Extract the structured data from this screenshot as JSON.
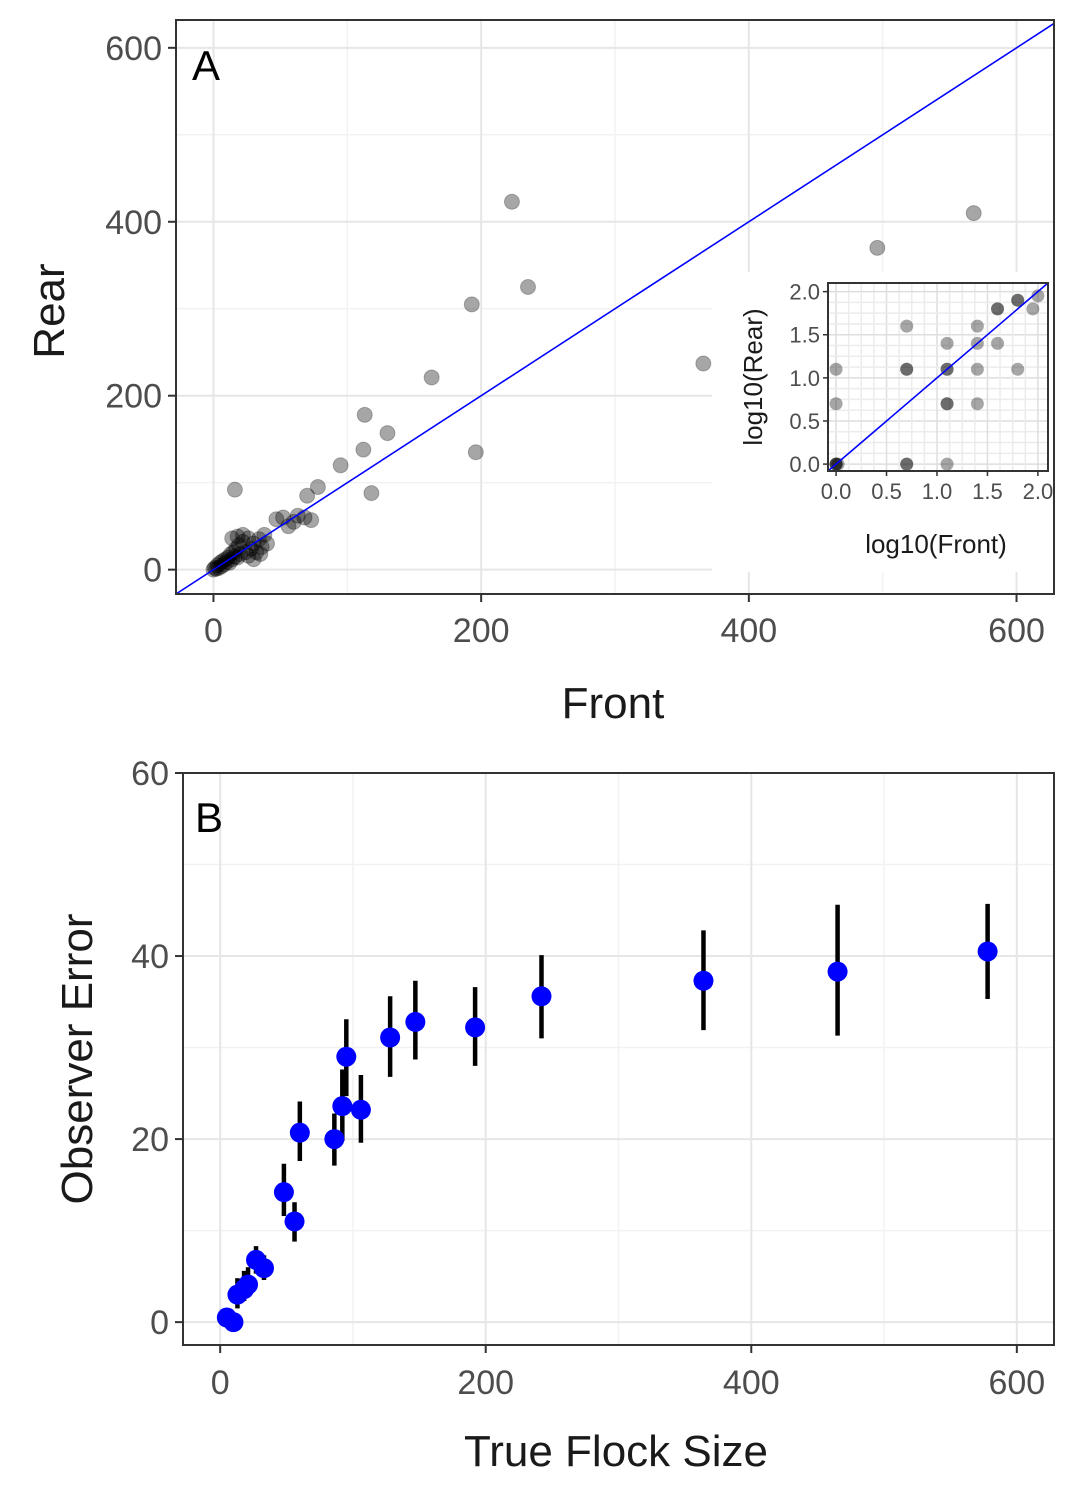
{
  "chart_data": [
    {
      "type": "scatter",
      "panel_label": "A",
      "xlabel": "Front",
      "ylabel": "Rear",
      "xlim": [
        -28,
        628
      ],
      "ylim": [
        -28,
        632
      ],
      "xticks": [
        0,
        200,
        400,
        600
      ],
      "yticks": [
        0,
        200,
        400,
        600
      ],
      "grid": true,
      "reference_line": {
        "slope": 1,
        "intercept": 0,
        "color": "#0000ff"
      },
      "point_color": "#000000",
      "point_opacity": 0.35,
      "points": [
        [
          0,
          0
        ],
        [
          1,
          2
        ],
        [
          2,
          1
        ],
        [
          3,
          5
        ],
        [
          4,
          2
        ],
        [
          5,
          8
        ],
        [
          6,
          4
        ],
        [
          7,
          10
        ],
        [
          8,
          6
        ],
        [
          9,
          12
        ],
        [
          10,
          9
        ],
        [
          11,
          14
        ],
        [
          12,
          8
        ],
        [
          13,
          18
        ],
        [
          14,
          12
        ],
        [
          15,
          20
        ],
        [
          16,
          15
        ],
        [
          17,
          24
        ],
        [
          18,
          14
        ],
        [
          19,
          28
        ],
        [
          20,
          18
        ],
        [
          22,
          32
        ],
        [
          24,
          20
        ],
        [
          26,
          36
        ],
        [
          28,
          24
        ],
        [
          30,
          30
        ],
        [
          32,
          20
        ],
        [
          34,
          35
        ],
        [
          36,
          26
        ],
        [
          38,
          40
        ],
        [
          40,
          30
        ],
        [
          14,
          36
        ],
        [
          18,
          38
        ],
        [
          22,
          40
        ],
        [
          26,
          16
        ],
        [
          30,
          12
        ],
        [
          35,
          18
        ],
        [
          16,
          92
        ],
        [
          47,
          58
        ],
        [
          52,
          60
        ],
        [
          56,
          50
        ],
        [
          60,
          55
        ],
        [
          63,
          62
        ],
        [
          68,
          60
        ],
        [
          70,
          85
        ],
        [
          73,
          57
        ],
        [
          78,
          95
        ],
        [
          95,
          120
        ],
        [
          113,
          178
        ],
        [
          112,
          138
        ],
        [
          118,
          88
        ],
        [
          130,
          157
        ],
        [
          163,
          221
        ],
        [
          193,
          305
        ],
        [
          196,
          135
        ],
        [
          223,
          423
        ],
        [
          235,
          325
        ],
        [
          366,
          237
        ],
        [
          496,
          370
        ],
        [
          568,
          410
        ]
      ],
      "inset": {
        "type": "scatter",
        "xlabel": "log10(Front)",
        "ylabel": "log10(Rear)",
        "xlim": [
          -0.08,
          2.1
        ],
        "ylim": [
          -0.08,
          2.1
        ],
        "xticks": [
          "0.0",
          "0.5",
          "1.0",
          "1.5",
          "2.0"
        ],
        "yticks": [
          "0.0",
          "0.5",
          "1.0",
          "1.5",
          "2.0"
        ],
        "reference_line": {
          "slope": 1,
          "intercept": 0,
          "color": "#0000ff"
        },
        "points": [
          [
            0,
            0
          ],
          [
            0,
            0
          ],
          [
            0,
            0
          ],
          [
            0.02,
            0.0
          ],
          [
            0.0,
            0.7
          ],
          [
            0.0,
            1.1
          ],
          [
            0.7,
            0.0
          ],
          [
            0.7,
            0.0
          ],
          [
            0.7,
            1.1
          ],
          [
            0.7,
            1.1
          ],
          [
            0.7,
            1.6
          ],
          [
            1.1,
            0.0
          ],
          [
            1.1,
            0.7
          ],
          [
            1.1,
            0.7
          ],
          [
            1.1,
            1.1
          ],
          [
            1.1,
            1.1
          ],
          [
            1.1,
            1.4
          ],
          [
            1.4,
            0.7
          ],
          [
            1.4,
            1.1
          ],
          [
            1.4,
            1.4
          ],
          [
            1.4,
            1.6
          ],
          [
            1.6,
            1.4
          ],
          [
            1.6,
            1.8
          ],
          [
            1.6,
            1.8
          ],
          [
            1.8,
            1.1
          ],
          [
            1.8,
            1.9
          ],
          [
            1.8,
            1.9
          ],
          [
            1.95,
            1.8
          ],
          [
            2.0,
            1.95
          ]
        ]
      }
    },
    {
      "type": "errorbar",
      "panel_label": "B",
      "xlabel": "True Flock Size",
      "ylabel": "Observer Error",
      "xlim": [
        -28,
        628
      ],
      "ylim": [
        -2.5,
        60
      ],
      "xticks": [
        0,
        200,
        400,
        600
      ],
      "yticks": [
        0,
        20,
        40,
        60
      ],
      "grid": true,
      "point_color": "#0000ff",
      "errorbar_color": "#000000",
      "points": [
        {
          "x": 5,
          "y": 0.5,
          "low": 0.0,
          "high": 1.2
        },
        {
          "x": 10,
          "y": 0.0,
          "low": -0.5,
          "high": 0.8
        },
        {
          "x": 13,
          "y": 3.0,
          "low": 1.5,
          "high": 4.8
        },
        {
          "x": 18,
          "y": 3.6,
          "low": 2.3,
          "high": 5.6
        },
        {
          "x": 21,
          "y": 4.1,
          "low": 2.8,
          "high": 6.0
        },
        {
          "x": 27,
          "y": 6.8,
          "low": 5.3,
          "high": 8.3
        },
        {
          "x": 33,
          "y": 5.9,
          "low": 4.6,
          "high": 7.3
        },
        {
          "x": 48,
          "y": 14.2,
          "low": 11.6,
          "high": 17.3
        },
        {
          "x": 56,
          "y": 11.0,
          "low": 8.8,
          "high": 13.1
        },
        {
          "x": 60,
          "y": 20.7,
          "low": 17.6,
          "high": 24.1
        },
        {
          "x": 86,
          "y": 20.0,
          "low": 17.1,
          "high": 22.8
        },
        {
          "x": 92,
          "y": 23.6,
          "low": 19.8,
          "high": 27.6
        },
        {
          "x": 95,
          "y": 29.0,
          "low": 24.7,
          "high": 33.1
        },
        {
          "x": 106,
          "y": 23.2,
          "low": 19.6,
          "high": 27.0
        },
        {
          "x": 128,
          "y": 31.1,
          "low": 26.8,
          "high": 35.6
        },
        {
          "x": 147,
          "y": 32.8,
          "low": 28.7,
          "high": 37.3
        },
        {
          "x": 192,
          "y": 32.2,
          "low": 28.0,
          "high": 36.6
        },
        {
          "x": 242,
          "y": 35.6,
          "low": 31.0,
          "high": 40.1
        },
        {
          "x": 364,
          "y": 37.3,
          "low": 31.9,
          "high": 42.8
        },
        {
          "x": 465,
          "y": 38.3,
          "low": 31.3,
          "high": 45.6
        },
        {
          "x": 578,
          "y": 40.5,
          "low": 35.3,
          "high": 45.7
        }
      ]
    }
  ]
}
